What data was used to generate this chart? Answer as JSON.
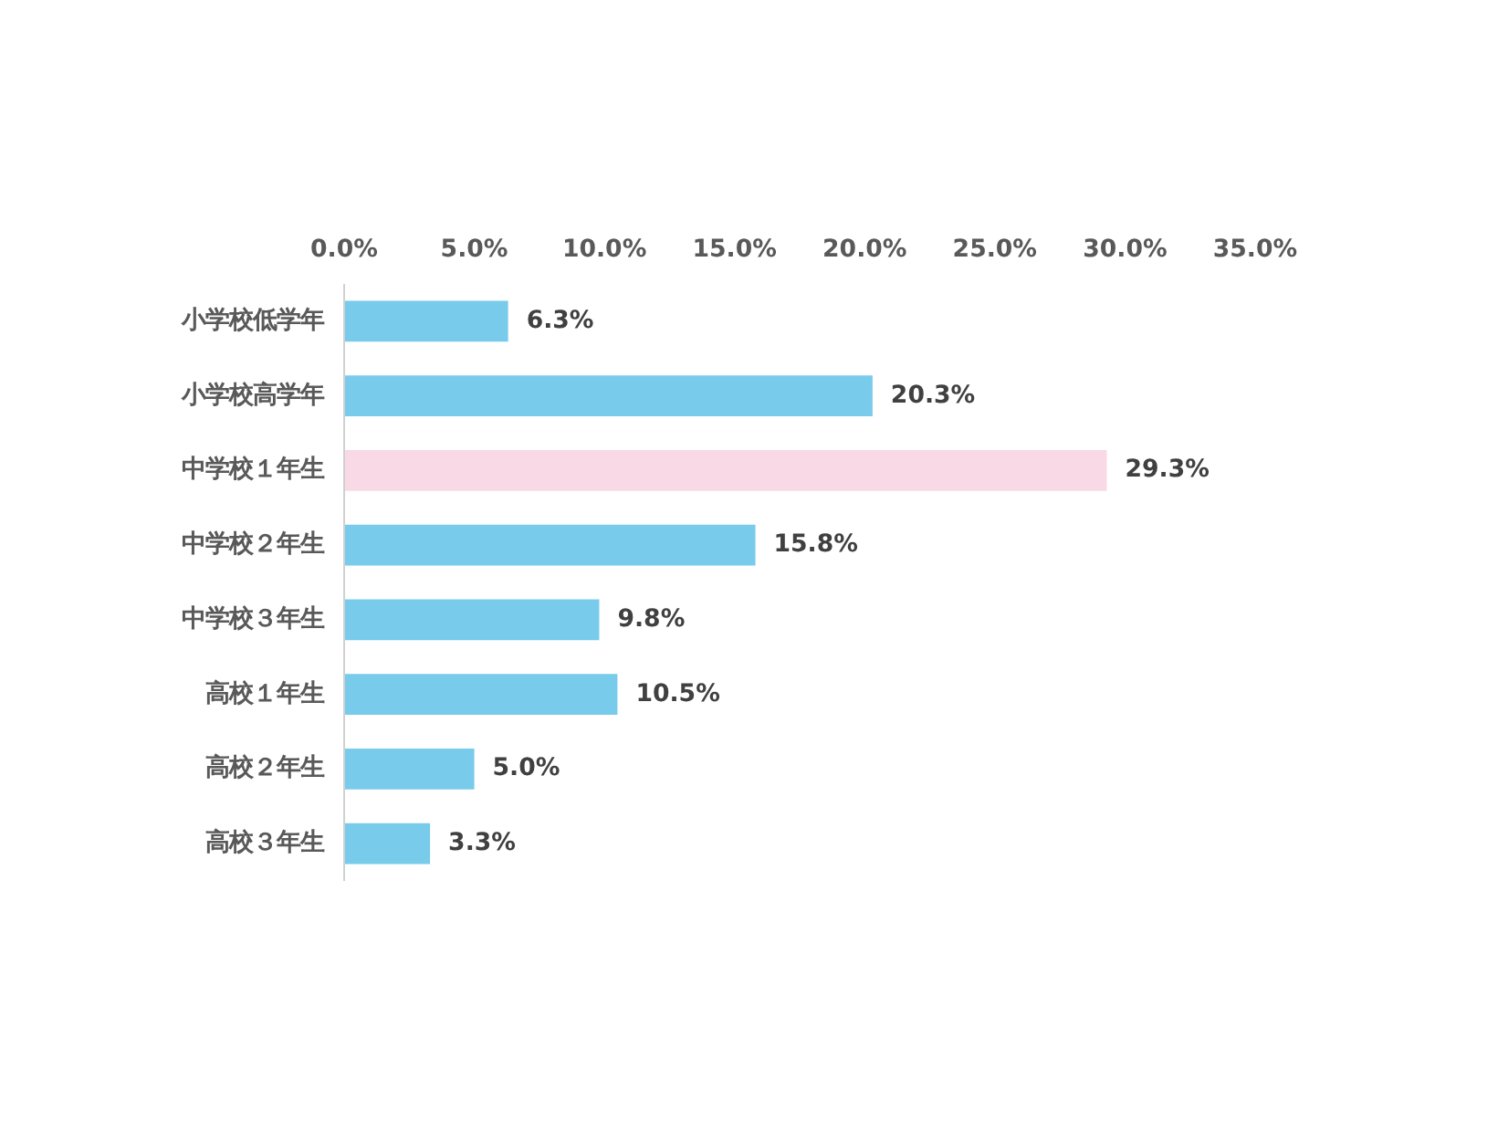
{
  "chart_data": {
    "type": "bar",
    "orientation": "horizontal",
    "categories": [
      "小学校低学年",
      "小学校高学年",
      "中学校１年生",
      "中学校２年生",
      "中学校３年生",
      "高校１年生",
      "高校２年生",
      "高校３年生"
    ],
    "values": [
      6.3,
      20.3,
      29.3,
      15.8,
      9.8,
      10.5,
      5.0,
      3.3
    ],
    "colors": [
      "#78cbeb",
      "#78cbeb",
      "#f9d9e6",
      "#78cbeb",
      "#78cbeb",
      "#78cbeb",
      "#78cbeb",
      "#78cbeb"
    ],
    "value_labels": [
      "6.3%",
      "20.3%",
      "29.3%",
      "15.8%",
      "9.8%",
      "10.5%",
      "5.0%",
      "3.3%"
    ],
    "xlim": [
      0,
      35
    ],
    "xticks": [
      {
        "value": 0,
        "label": "0.0%"
      },
      {
        "value": 5,
        "label": "5.0%"
      },
      {
        "value": 10,
        "label": "10.0%"
      },
      {
        "value": 15,
        "label": "15.0%"
      },
      {
        "value": 20,
        "label": "20.0%"
      },
      {
        "value": 25,
        "label": "25.0%"
      },
      {
        "value": 30,
        "label": "30.0%"
      },
      {
        "value": 35,
        "label": "35.0%"
      }
    ]
  }
}
